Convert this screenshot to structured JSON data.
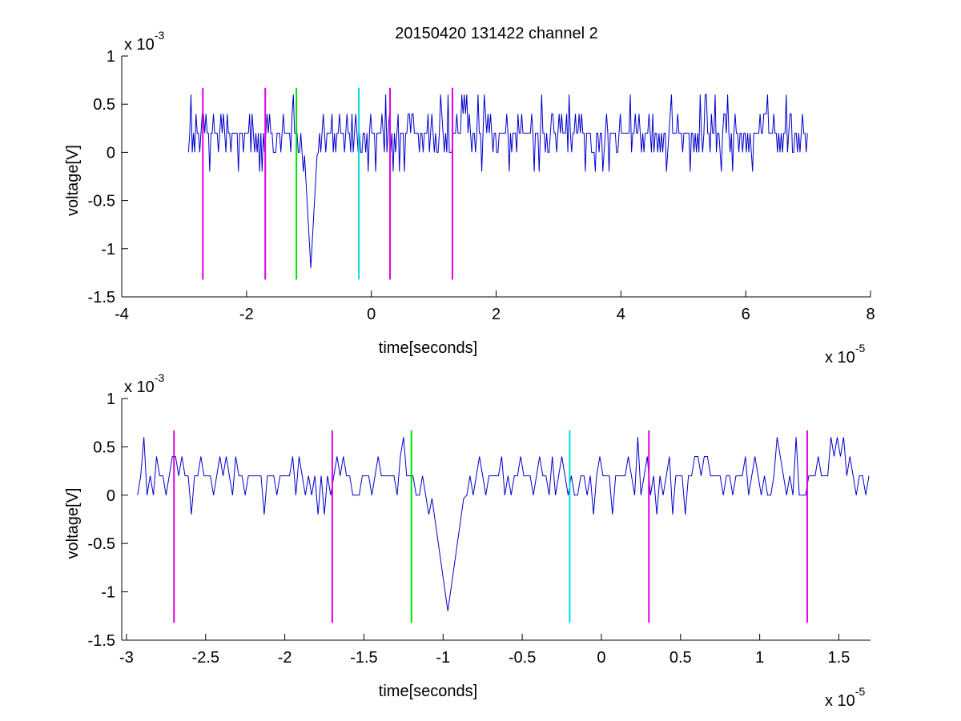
{
  "figure_title": "20150420 131422 channel 2",
  "chart_data": [
    {
      "type": "line",
      "title": "20150420 131422 channel 2",
      "xlabel": "time[seconds]",
      "ylabel": "voltage[V]",
      "x_exponent": "x 10",
      "x_exponent_power": "-5",
      "y_exponent": "x 10",
      "y_exponent_power": "-3",
      "xlim": [
        -4,
        8
      ],
      "ylim": [
        -1.5,
        1
      ],
      "xticks": [
        -4,
        -2,
        0,
        2,
        4,
        6,
        8
      ],
      "yticks": [
        -1.5,
        -1,
        -0.5,
        0,
        0.5,
        1
      ],
      "xtick_labels": [
        "-4",
        "-2",
        "0",
        "2",
        "4",
        "6",
        "8"
      ],
      "ytick_labels": [
        "-1.5",
        "-1",
        "-0.5",
        "0",
        "0.5",
        "1"
      ],
      "grid": false,
      "signal": {
        "color": "#0000cc",
        "x_range": [
          -2.93,
          7.0
        ],
        "sample_step": 0.02,
        "levels": [
          -0.2,
          0,
          0.2,
          0.4,
          0.6
        ],
        "baseline": 0.2,
        "spike": {
          "x": -0.97,
          "min": -1.2
        }
      },
      "markers": [
        {
          "x": -2.7,
          "color": "#e000e0",
          "y_range": [
            -1.32,
            0.67
          ]
        },
        {
          "x": -1.7,
          "color": "#e000e0",
          "y_range": [
            -1.32,
            0.67
          ]
        },
        {
          "x": -1.2,
          "color": "#00e000",
          "y_range": [
            -1.32,
            0.67
          ]
        },
        {
          "x": -0.2,
          "color": "#00e0e0",
          "y_range": [
            -1.32,
            0.67
          ]
        },
        {
          "x": 0.3,
          "color": "#e000e0",
          "y_range": [
            -1.32,
            0.67
          ]
        },
        {
          "x": 1.3,
          "color": "#e000e0",
          "y_range": [
            -1.32,
            0.67
          ]
        }
      ]
    },
    {
      "type": "line",
      "title": "",
      "xlabel": "time[seconds]",
      "ylabel": "voltage[V]",
      "x_exponent": "x 10",
      "x_exponent_power": "-5",
      "y_exponent": "x 10",
      "y_exponent_power": "-3",
      "xlim": [
        -3.03,
        1.7
      ],
      "ylim": [
        -1.5,
        1
      ],
      "xticks": [
        -3,
        -2.5,
        -2,
        -1.5,
        -1,
        -0.5,
        0,
        0.5,
        1,
        1.5
      ],
      "yticks": [
        -1.5,
        -1,
        -0.5,
        0,
        0.5,
        1
      ],
      "xtick_labels": [
        "-3",
        "-2.5",
        "-2",
        "-1.5",
        "-1",
        "-0.5",
        "0",
        "0.5",
        "1",
        "1.5"
      ],
      "ytick_labels": [
        "-1.5",
        "-1",
        "-0.5",
        "0",
        "0.5",
        "1"
      ],
      "grid": false,
      "signal": {
        "color": "#0000cc",
        "x_range": [
          -2.93,
          1.7
        ],
        "sample_step": 0.02,
        "levels": [
          -0.2,
          0,
          0.2,
          0.4,
          0.6
        ],
        "baseline": 0.2,
        "spike": {
          "x": -0.97,
          "min": -1.2
        }
      },
      "markers": [
        {
          "x": -2.7,
          "color": "#e000e0",
          "y_range": [
            -1.32,
            0.67
          ]
        },
        {
          "x": -1.7,
          "color": "#e000e0",
          "y_range": [
            -1.32,
            0.67
          ]
        },
        {
          "x": -1.2,
          "color": "#00e000",
          "y_range": [
            -1.32,
            0.67
          ]
        },
        {
          "x": -0.2,
          "color": "#00e0e0",
          "y_range": [
            -1.32,
            0.67
          ]
        },
        {
          "x": 0.3,
          "color": "#e000e0",
          "y_range": [
            -1.32,
            0.67
          ]
        },
        {
          "x": 1.3,
          "color": "#e000e0",
          "y_range": [
            -1.32,
            0.67
          ]
        }
      ]
    }
  ]
}
